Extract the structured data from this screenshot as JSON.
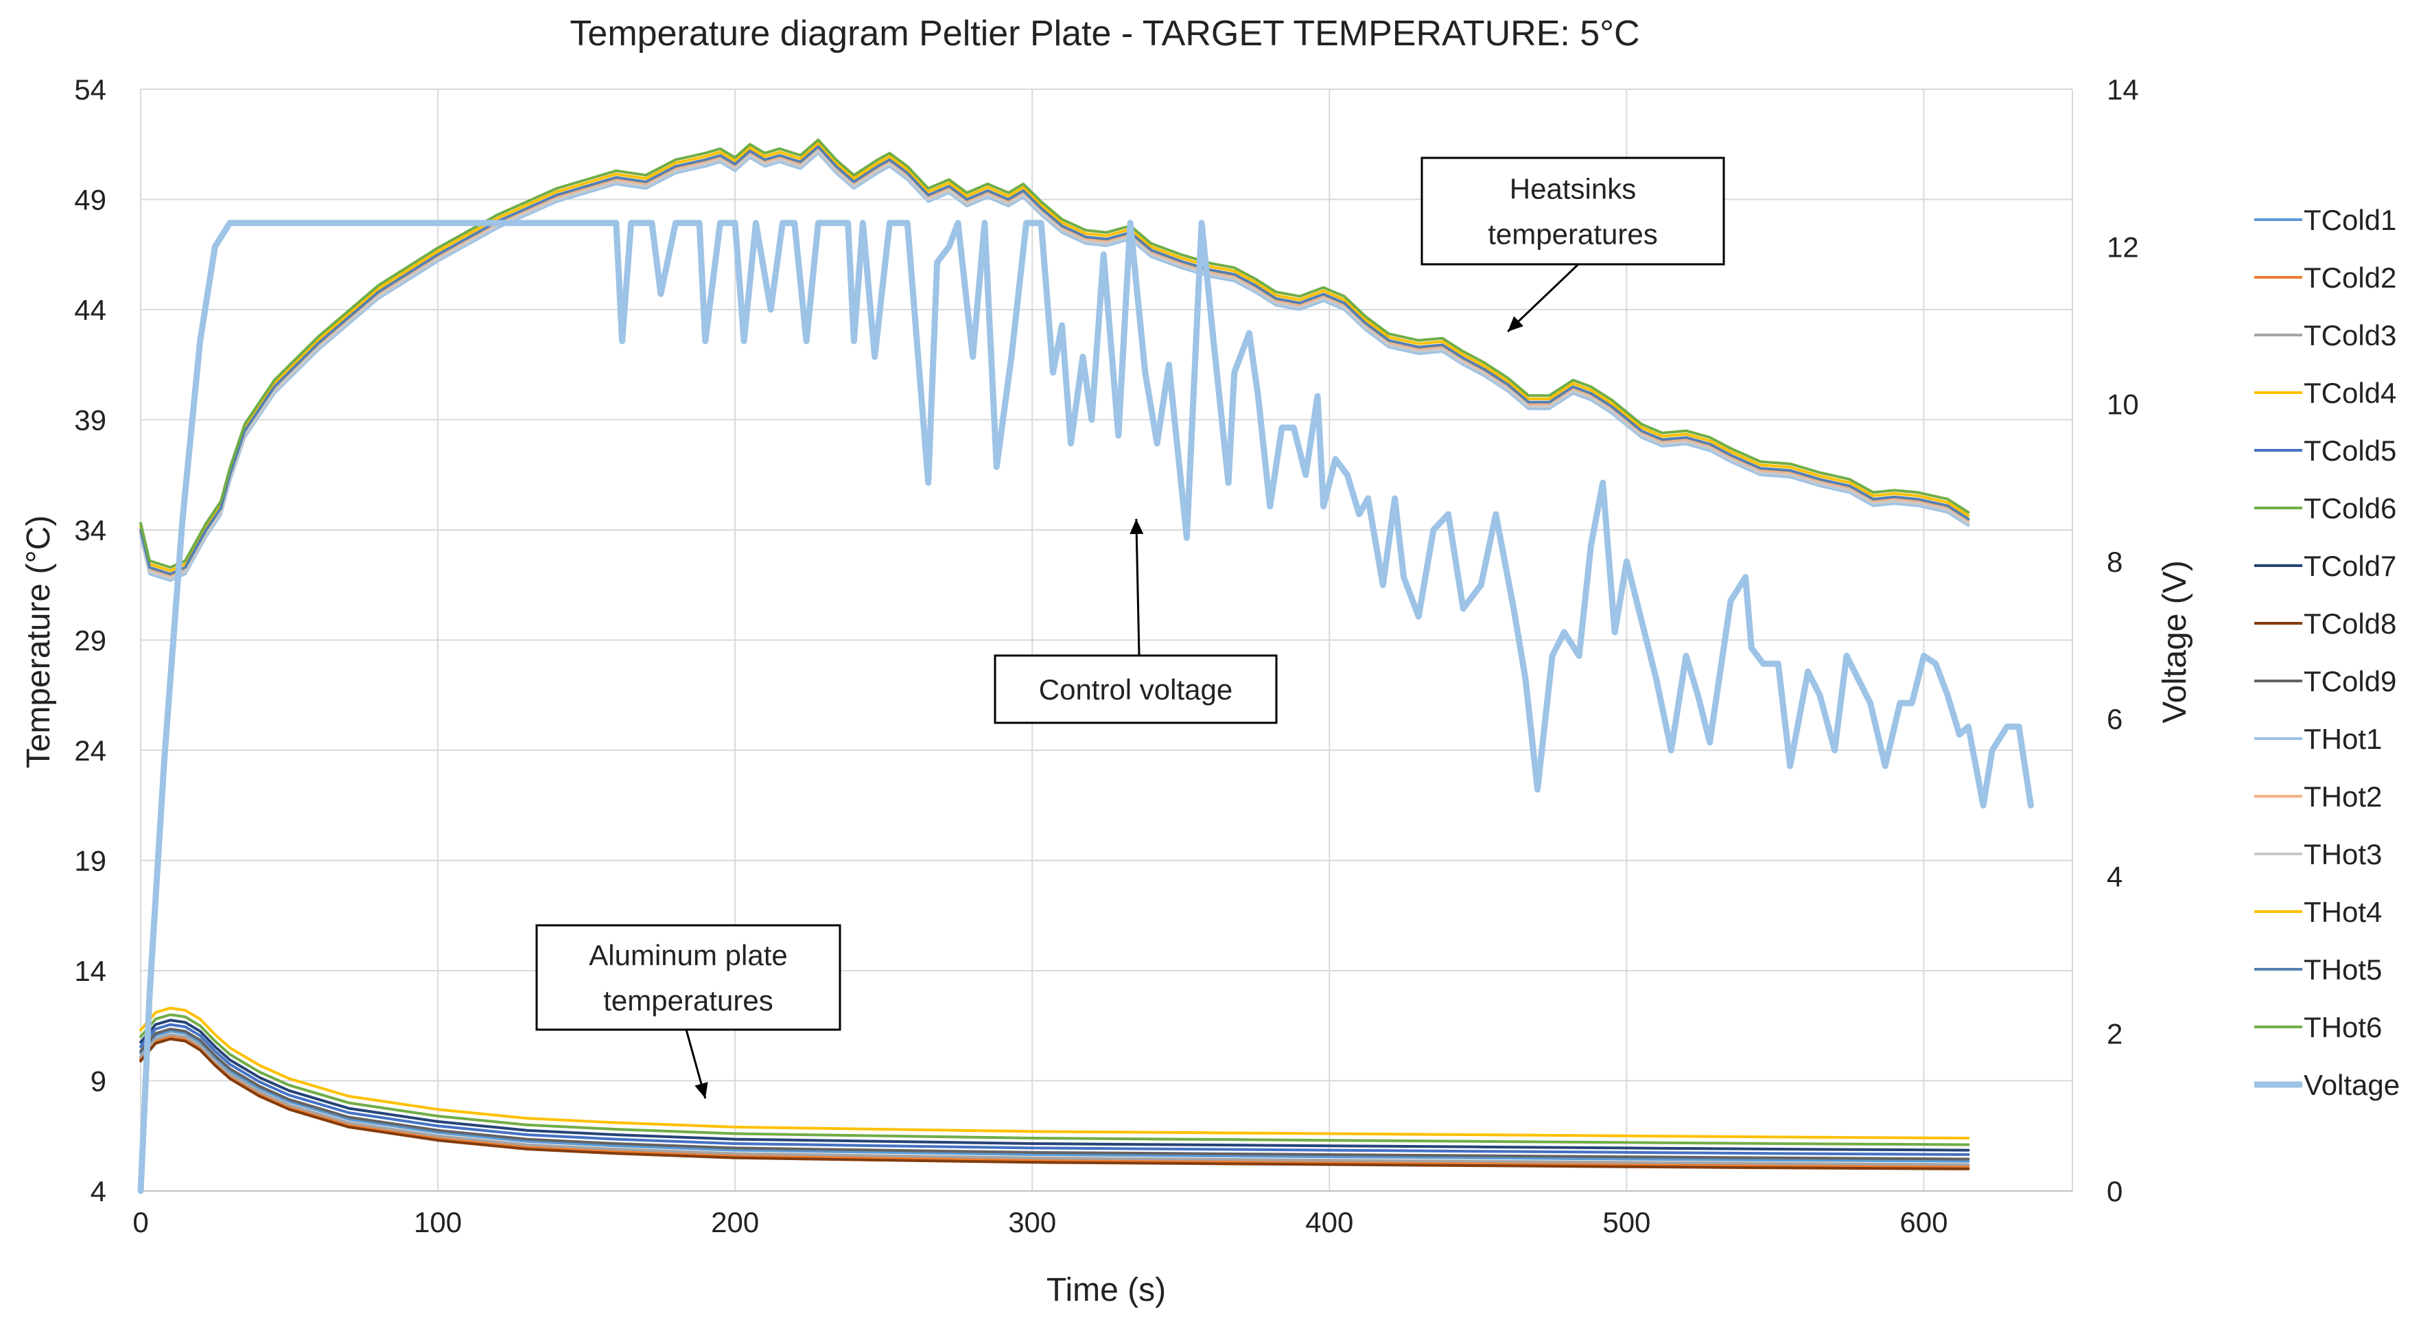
{
  "chart_data": {
    "type": "line",
    "title": "Temperature diagram Peltier Plate  - TARGET TEMPERATURE: 5°C",
    "xlabel": "Time (s)",
    "ylabel": "Temperature (°C)",
    "y2label": "Voltage (V)",
    "xlim": [
      0,
      650
    ],
    "ylim": [
      4,
      54
    ],
    "y2lim": [
      0,
      14
    ],
    "xticks": [
      0,
      100,
      200,
      300,
      400,
      500,
      600
    ],
    "yticks": [
      4,
      9,
      14,
      19,
      24,
      29,
      34,
      39,
      44,
      49,
      54
    ],
    "y2ticks": [
      0,
      2,
      4,
      6,
      8,
      10,
      12,
      14
    ],
    "grid": true,
    "legend_position": "right",
    "annotations": [
      {
        "text": [
          "Heatsinks",
          "temperatures"
        ],
        "target": [
          460,
          43
        ]
      },
      {
        "text": [
          "Control voltage"
        ],
        "target": [
          335,
          34.5
        ]
      },
      {
        "text": [
          "Aluminum plate",
          "temperatures"
        ],
        "target": [
          190,
          8.2
        ]
      }
    ],
    "base_curves": {
      "heatsink": [
        [
          0,
          34
        ],
        [
          3,
          32.3
        ],
        [
          10,
          32
        ],
        [
          15,
          32.3
        ],
        [
          22,
          34
        ],
        [
          27,
          35
        ],
        [
          30,
          36.5
        ],
        [
          35,
          38.5
        ],
        [
          45,
          40.5
        ],
        [
          60,
          42.5
        ],
        [
          80,
          44.8
        ],
        [
          100,
          46.5
        ],
        [
          120,
          48
        ],
        [
          140,
          49.2
        ],
        [
          160,
          50
        ],
        [
          170,
          49.8
        ],
        [
          180,
          50.5
        ],
        [
          190,
          50.8
        ],
        [
          195,
          51
        ],
        [
          200,
          50.6
        ],
        [
          205,
          51.2
        ],
        [
          210,
          50.8
        ],
        [
          215,
          51
        ],
        [
          222,
          50.7
        ],
        [
          228,
          51.4
        ],
        [
          234,
          50.5
        ],
        [
          240,
          49.8
        ],
        [
          248,
          50.5
        ],
        [
          252,
          50.8
        ],
        [
          258,
          50.2
        ],
        [
          265,
          49.2
        ],
        [
          272,
          49.6
        ],
        [
          278,
          49
        ],
        [
          285,
          49.4
        ],
        [
          292,
          49
        ],
        [
          297,
          49.4
        ],
        [
          303,
          48.6
        ],
        [
          310,
          47.8
        ],
        [
          318,
          47.3
        ],
        [
          325,
          47.2
        ],
        [
          333,
          47.5
        ],
        [
          340,
          46.7
        ],
        [
          350,
          46.2
        ],
        [
          360,
          45.8
        ],
        [
          368,
          45.6
        ],
        [
          375,
          45.1
        ],
        [
          382,
          44.5
        ],
        [
          390,
          44.3
        ],
        [
          398,
          44.7
        ],
        [
          405,
          44.3
        ],
        [
          412,
          43.4
        ],
        [
          420,
          42.6
        ],
        [
          430,
          42.3
        ],
        [
          438,
          42.4
        ],
        [
          445,
          41.8
        ],
        [
          452,
          41.3
        ],
        [
          460,
          40.6
        ],
        [
          467,
          39.8
        ],
        [
          474,
          39.8
        ],
        [
          482,
          40.5
        ],
        [
          488,
          40.2
        ],
        [
          495,
          39.6
        ],
        [
          505,
          38.5
        ],
        [
          512,
          38.1
        ],
        [
          520,
          38.2
        ],
        [
          528,
          37.9
        ],
        [
          535,
          37.4
        ],
        [
          545,
          36.8
        ],
        [
          555,
          36.7
        ],
        [
          565,
          36.3
        ],
        [
          575,
          36
        ],
        [
          583,
          35.4
        ],
        [
          590,
          35.5
        ],
        [
          598,
          35.4
        ],
        [
          608,
          35.1
        ],
        [
          615,
          34.5
        ]
      ],
      "plate": [
        [
          0,
          10
        ],
        [
          5,
          10.8
        ],
        [
          10,
          11
        ],
        [
          15,
          10.9
        ],
        [
          20,
          10.5
        ],
        [
          25,
          9.8
        ],
        [
          30,
          9.2
        ],
        [
          40,
          8.4
        ],
        [
          50,
          7.8
        ],
        [
          70,
          7
        ],
        [
          100,
          6.4
        ],
        [
          130,
          6
        ],
        [
          160,
          5.8
        ],
        [
          200,
          5.6
        ],
        [
          250,
          5.5
        ],
        [
          300,
          5.4
        ],
        [
          350,
          5.35
        ],
        [
          400,
          5.3
        ],
        [
          450,
          5.25
        ],
        [
          500,
          5.2
        ],
        [
          550,
          5.15
        ],
        [
          615,
          5.1
        ]
      ]
    },
    "series": [
      {
        "name": "TCold1",
        "color": "#5b9bd5",
        "base": "plate",
        "offset": 0.25
      },
      {
        "name": "TCold2",
        "color": "#ed7d31",
        "base": "plate",
        "offset": 0.0
      },
      {
        "name": "TCold3",
        "color": "#a5a5a5",
        "base": "plate",
        "offset": 0.1
      },
      {
        "name": "TCold4",
        "color": "#ffc000",
        "base": "plate",
        "offset": 1.3
      },
      {
        "name": "TCold5",
        "color": "#4472c4",
        "base": "plate",
        "offset": 0.55
      },
      {
        "name": "TCold6",
        "color": "#70ad47",
        "base": "plate",
        "offset": 1.0
      },
      {
        "name": "TCold7",
        "color": "#264478",
        "base": "plate",
        "offset": 0.75
      },
      {
        "name": "TCold8",
        "color": "#843c0c",
        "base": "plate",
        "offset": -0.1
      },
      {
        "name": "TCold9",
        "color": "#636363",
        "base": "plate",
        "offset": 0.35
      },
      {
        "name": "THot1",
        "color": "#9dc3e6",
        "base": "heatsink",
        "offset": -0.3
      },
      {
        "name": "THot2",
        "color": "#f4b183",
        "base": "heatsink",
        "offset": -0.1
      },
      {
        "name": "THot3",
        "color": "#c9c9c9",
        "base": "heatsink",
        "offset": -0.2
      },
      {
        "name": "THot4",
        "color": "#ffc000",
        "base": "heatsink",
        "offset": 0.15
      },
      {
        "name": "THot5",
        "color": "#5580b0",
        "base": "heatsink",
        "offset": 0.0
      },
      {
        "name": "THot6",
        "color": "#70ad47",
        "base": "heatsink",
        "offset": 0.3
      },
      {
        "name": "Voltage",
        "color": "#9dc3e6",
        "axis": "y2",
        "points": [
          [
            0,
            0
          ],
          [
            3,
            2.5
          ],
          [
            8,
            5.5
          ],
          [
            14,
            8.5
          ],
          [
            20,
            10.8
          ],
          [
            25,
            12
          ],
          [
            30,
            12.3
          ],
          [
            160,
            12.3
          ],
          [
            162,
            10.8
          ],
          [
            165,
            12.3
          ],
          [
            172,
            12.3
          ],
          [
            175,
            11.4
          ],
          [
            180,
            12.3
          ],
          [
            188,
            12.3
          ],
          [
            190,
            10.8
          ],
          [
            195,
            12.3
          ],
          [
            200,
            12.3
          ],
          [
            203,
            10.8
          ],
          [
            207,
            12.3
          ],
          [
            212,
            11.2
          ],
          [
            216,
            12.3
          ],
          [
            220,
            12.3
          ],
          [
            224,
            10.8
          ],
          [
            228,
            12.3
          ],
          [
            238,
            12.3
          ],
          [
            240,
            10.8
          ],
          [
            243,
            12.3
          ],
          [
            247,
            10.6
          ],
          [
            252,
            12.3
          ],
          [
            258,
            12.3
          ],
          [
            265,
            9
          ],
          [
            268,
            11.8
          ],
          [
            272,
            12
          ],
          [
            275,
            12.3
          ],
          [
            280,
            10.6
          ],
          [
            284,
            12.3
          ],
          [
            288,
            9.2
          ],
          [
            293,
            10.6
          ],
          [
            298,
            12.3
          ],
          [
            303,
            12.3
          ],
          [
            307,
            10.4
          ],
          [
            310,
            11
          ],
          [
            313,
            9.5
          ],
          [
            317,
            10.6
          ],
          [
            320,
            9.8
          ],
          [
            324,
            11.9
          ],
          [
            329,
            9.6
          ],
          [
            333,
            12.3
          ],
          [
            338,
            10.4
          ],
          [
            342,
            9.5
          ],
          [
            346,
            10.5
          ],
          [
            352,
            8.3
          ],
          [
            357,
            12.3
          ],
          [
            361,
            10.8
          ],
          [
            366,
            9
          ],
          [
            368,
            10.4
          ],
          [
            373,
            10.9
          ],
          [
            376,
            10.1
          ],
          [
            380,
            8.7
          ],
          [
            384,
            9.7
          ],
          [
            388,
            9.7
          ],
          [
            392,
            9.1
          ],
          [
            396,
            10.1
          ],
          [
            398,
            8.7
          ],
          [
            402,
            9.3
          ],
          [
            406,
            9.1
          ],
          [
            410,
            8.6
          ],
          [
            413,
            8.8
          ],
          [
            418,
            7.7
          ],
          [
            422,
            8.8
          ],
          [
            425,
            7.8
          ],
          [
            430,
            7.3
          ],
          [
            435,
            8.4
          ],
          [
            440,
            8.6
          ],
          [
            445,
            7.4
          ],
          [
            451,
            7.7
          ],
          [
            456,
            8.6
          ],
          [
            462,
            7.4
          ],
          [
            466,
            6.5
          ],
          [
            470,
            5.1
          ],
          [
            475,
            6.8
          ],
          [
            479,
            7.1
          ],
          [
            484,
            6.8
          ],
          [
            488,
            8.2
          ],
          [
            492,
            9
          ],
          [
            496,
            7.1
          ],
          [
            500,
            8
          ],
          [
            506,
            7.1
          ],
          [
            510,
            6.5
          ],
          [
            515,
            5.6
          ],
          [
            520,
            6.8
          ],
          [
            524,
            6.3
          ],
          [
            528,
            5.7
          ],
          [
            535,
            7.5
          ],
          [
            540,
            7.8
          ],
          [
            542,
            6.9
          ],
          [
            546,
            6.7
          ],
          [
            551,
            6.7
          ],
          [
            555,
            5.4
          ],
          [
            561,
            6.6
          ],
          [
            565,
            6.3
          ],
          [
            570,
            5.6
          ],
          [
            574,
            6.8
          ],
          [
            578,
            6.5
          ],
          [
            582,
            6.2
          ],
          [
            587,
            5.4
          ],
          [
            592,
            6.2
          ],
          [
            596,
            6.2
          ],
          [
            600,
            6.8
          ],
          [
            604,
            6.7
          ],
          [
            608,
            6.3
          ],
          [
            612,
            5.8
          ],
          [
            615,
            5.9
          ],
          [
            620,
            4.9
          ],
          [
            623,
            5.6
          ],
          [
            628,
            5.9
          ],
          [
            632,
            5.9
          ],
          [
            636,
            4.9
          ]
        ]
      }
    ]
  }
}
